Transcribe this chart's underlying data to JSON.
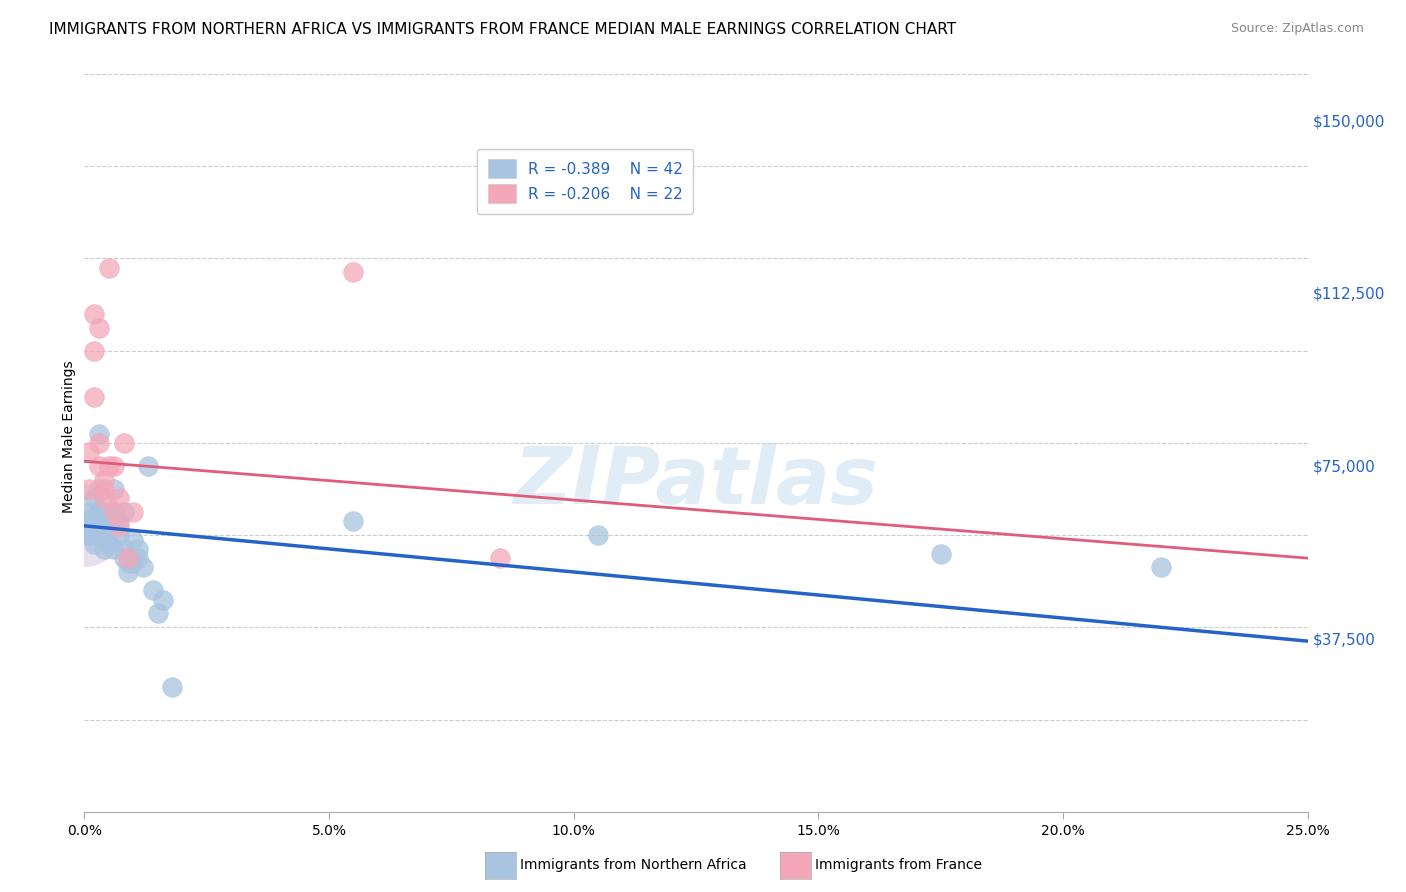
{
  "title": "IMMIGRANTS FROM NORTHERN AFRICA VS IMMIGRANTS FROM FRANCE MEDIAN MALE EARNINGS CORRELATION CHART",
  "source": "Source: ZipAtlas.com",
  "ylabel": "Median Male Earnings",
  "ytick_labels": [
    "$37,500",
    "$75,000",
    "$112,500",
    "$150,000"
  ],
  "ytick_values": [
    37500,
    75000,
    112500,
    150000
  ],
  "y_min": 0,
  "y_max": 162500,
  "x_min": 0.0,
  "x_max": 0.25,
  "legend_r1": "R = ",
  "legend_rv1": "-0.389",
  "legend_n1": "N = ",
  "legend_nv1": "42",
  "legend_r2": "R = ",
  "legend_rv2": "-0.206",
  "legend_n2": "N = ",
  "legend_nv2": "22",
  "watermark": "ZIPatlas",
  "blue_color": "#a8c4e0",
  "blue_line_color": "#2563c9",
  "pink_color": "#f4a7b9",
  "pink_line_color": "#e05c7a",
  "blue_dots": [
    [
      0.001,
      62000
    ],
    [
      0.001,
      65000
    ],
    [
      0.001,
      60000
    ],
    [
      0.001,
      63000
    ],
    [
      0.002,
      68000
    ],
    [
      0.002,
      62000
    ],
    [
      0.002,
      60000
    ],
    [
      0.002,
      64000
    ],
    [
      0.002,
      58000
    ],
    [
      0.003,
      82000
    ],
    [
      0.003,
      70000
    ],
    [
      0.003,
      65000
    ],
    [
      0.003,
      62000
    ],
    [
      0.004,
      65000
    ],
    [
      0.004,
      60000
    ],
    [
      0.004,
      57000
    ],
    [
      0.005,
      62000
    ],
    [
      0.005,
      58000
    ],
    [
      0.006,
      70000
    ],
    [
      0.006,
      65000
    ],
    [
      0.006,
      57000
    ],
    [
      0.007,
      63000
    ],
    [
      0.007,
      60000
    ],
    [
      0.008,
      65000
    ],
    [
      0.008,
      57000
    ],
    [
      0.008,
      55000
    ],
    [
      0.009,
      54000
    ],
    [
      0.009,
      52000
    ],
    [
      0.01,
      54000
    ],
    [
      0.01,
      59000
    ],
    [
      0.011,
      57000
    ],
    [
      0.011,
      55000
    ],
    [
      0.012,
      53000
    ],
    [
      0.013,
      75000
    ],
    [
      0.014,
      48000
    ],
    [
      0.015,
      43000
    ],
    [
      0.016,
      46000
    ],
    [
      0.018,
      27000
    ],
    [
      0.055,
      63000
    ],
    [
      0.105,
      60000
    ],
    [
      0.175,
      56000
    ],
    [
      0.22,
      53000
    ]
  ],
  "pink_dots": [
    [
      0.001,
      70000
    ],
    [
      0.001,
      78000
    ],
    [
      0.002,
      100000
    ],
    [
      0.002,
      108000
    ],
    [
      0.002,
      90000
    ],
    [
      0.003,
      105000
    ],
    [
      0.003,
      80000
    ],
    [
      0.003,
      75000
    ],
    [
      0.004,
      72000
    ],
    [
      0.004,
      70000
    ],
    [
      0.004,
      68000
    ],
    [
      0.005,
      118000
    ],
    [
      0.005,
      75000
    ],
    [
      0.006,
      75000
    ],
    [
      0.006,
      65000
    ],
    [
      0.007,
      68000
    ],
    [
      0.007,
      62000
    ],
    [
      0.008,
      80000
    ],
    [
      0.009,
      55000
    ],
    [
      0.01,
      65000
    ],
    [
      0.055,
      117000
    ],
    [
      0.085,
      55000
    ]
  ],
  "blue_trend": [
    62000,
    37000
  ],
  "pink_trend": [
    76000,
    55000
  ],
  "title_fontsize": 11,
  "source_fontsize": 9,
  "axis_label_fontsize": 10,
  "tick_fontsize": 10,
  "legend_fontsize": 11,
  "bottom_legend_label1": "Immigrants from Northern Africa",
  "bottom_legend_label2": "Immigrants from France"
}
